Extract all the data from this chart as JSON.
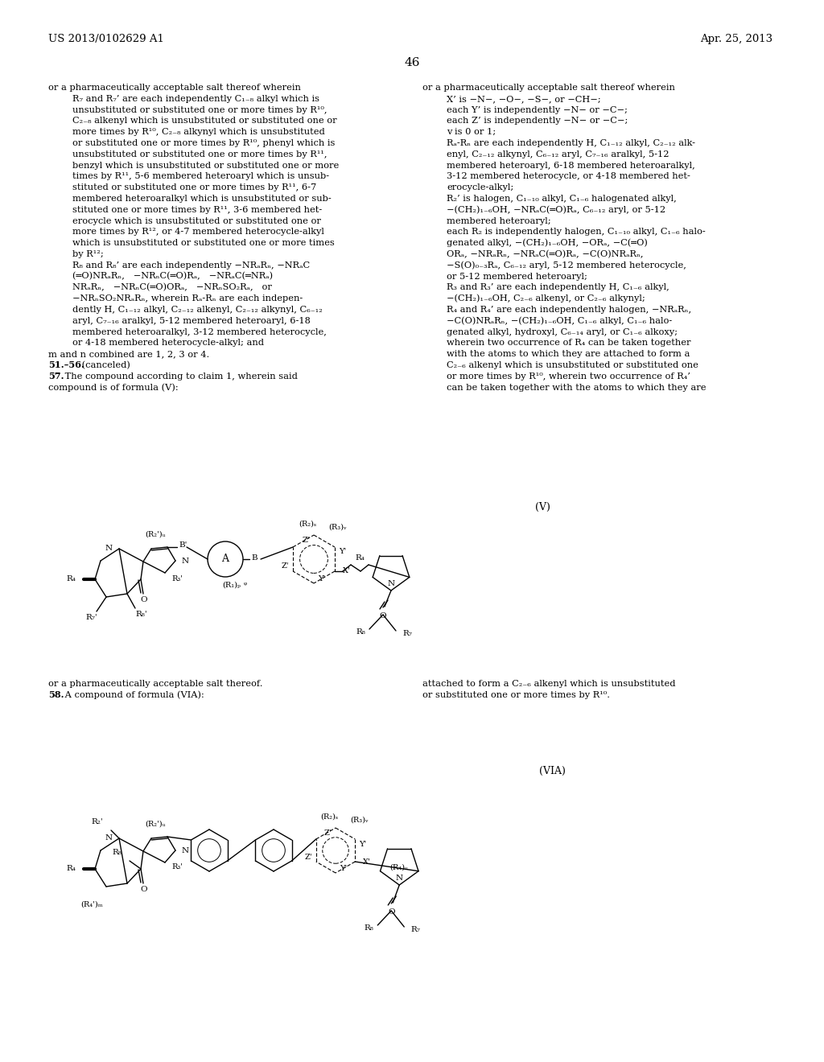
{
  "background_color": "#ffffff",
  "page_number": "46",
  "header_left": "US 2013/0102629 A1",
  "header_right": "Apr. 25, 2013"
}
